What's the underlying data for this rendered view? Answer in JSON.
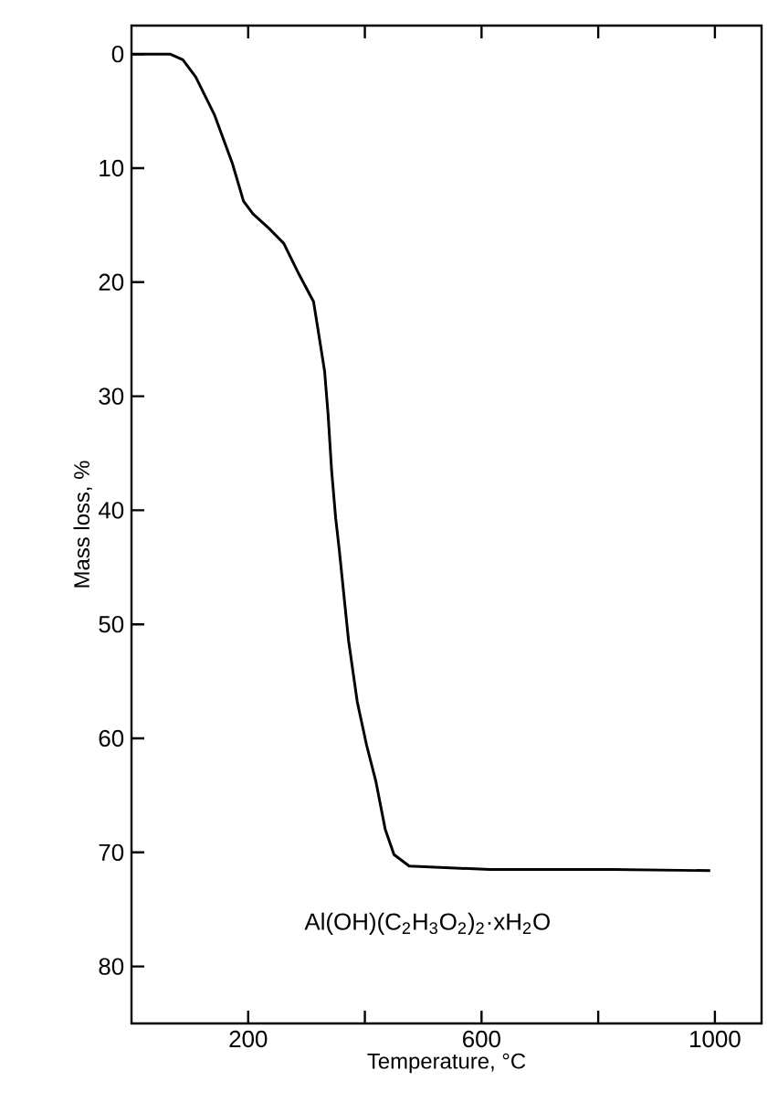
{
  "chart_data": {
    "type": "line",
    "xlabel": "Temperature, °C",
    "ylabel": "Mass loss, %",
    "annotations": [
      "Al(OH)(C$_{2}$H$_{3}$O$_{2}$)$_{2}$·xH$_{2}$O"
    ],
    "x": [
      0,
      66,
      88,
      110,
      142,
      173,
      192,
      208,
      236,
      261,
      287,
      312,
      318,
      331,
      337,
      343,
      350,
      356,
      372,
      387,
      403,
      419,
      435,
      450,
      476,
      614,
      822,
      992
    ],
    "series": [
      {
        "color": "#000000",
        "values": [
          0,
          0,
          0.5,
          2,
          5.3,
          9.6,
          12.9,
          14,
          15.3,
          16.6,
          19.3,
          21.7,
          23.6,
          27.8,
          31.6,
          36.5,
          40.7,
          43.4,
          51.4,
          56.8,
          60.6,
          63.8,
          68,
          70.2,
          71.2,
          71.5,
          71.5,
          71.6
        ]
      }
    ],
    "xlim": [
      0,
      1080
    ],
    "ylim": [
      85,
      -2.5
    ],
    "xticks": [
      200,
      {
        "value": 400,
        "label": null
      },
      600,
      {
        "value": 800,
        "label": null
      },
      1000
    ],
    "yticks": [
      0,
      10,
      20,
      30,
      40,
      50,
      60,
      70,
      80
    ],
    "marker": "none",
    "line_style": "solid"
  }
}
